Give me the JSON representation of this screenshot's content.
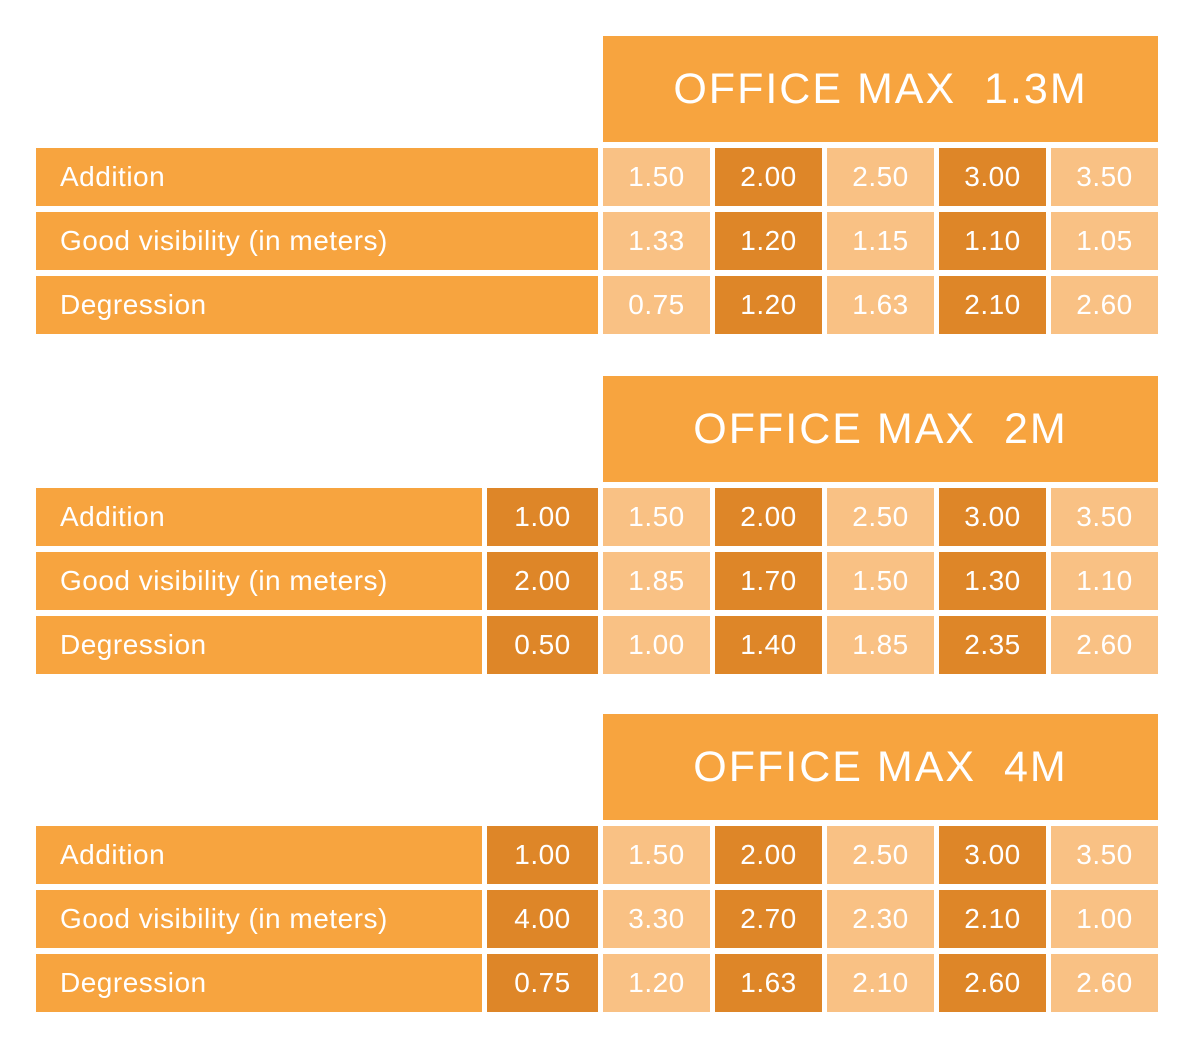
{
  "colors": {
    "header_and_label_orange": "#F7A43F",
    "light_cell_orange": "#F9C184",
    "dark_cell_orange": "#DE8628",
    "text": "#FFFFFF",
    "background": "#FFFFFF"
  },
  "tables": [
    {
      "title": "OFFICE MAX  1.3M",
      "rows": [
        {
          "label": "Addition",
          "values": [
            "1.50",
            "2.00",
            "2.50",
            "3.00",
            "3.50"
          ]
        },
        {
          "label": "Good visibility (in meters)",
          "values": [
            "1.33",
            "1.20",
            "1.15",
            "1.10",
            "1.05"
          ]
        },
        {
          "label": "Degression",
          "values": [
            "0.75",
            "1.20",
            "1.63",
            "2.10",
            "2.60"
          ]
        }
      ]
    },
    {
      "title": "OFFICE MAX  2M",
      "rows": [
        {
          "label": "Addition",
          "first": "1.00",
          "values": [
            "1.50",
            "2.00",
            "2.50",
            "3.00",
            "3.50"
          ]
        },
        {
          "label": "Good visibility (in meters)",
          "first": "2.00",
          "values": [
            "1.85",
            "1.70",
            "1.50",
            "1.30",
            "1.10"
          ]
        },
        {
          "label": "Degression",
          "first": "0.50",
          "values": [
            "1.00",
            "1.40",
            "1.85",
            "2.35",
            "2.60"
          ]
        }
      ]
    },
    {
      "title": "OFFICE MAX  4M",
      "rows": [
        {
          "label": "Addition",
          "first": "1.00",
          "values": [
            "1.50",
            "2.00",
            "2.50",
            "3.00",
            "3.50"
          ]
        },
        {
          "label": "Good visibility (in meters)",
          "first": "4.00",
          "values": [
            "3.30",
            "2.70",
            "2.30",
            "2.10",
            "1.00"
          ]
        },
        {
          "label": "Degression",
          "first": "0.75",
          "values": [
            "1.20",
            "1.63",
            "2.10",
            "2.60",
            "2.60"
          ]
        }
      ]
    }
  ],
  "chart_data": [
    {
      "type": "table",
      "title": "OFFICE MAX 1.3M",
      "row_headers": [
        "Addition",
        "Good visibility (in meters)",
        "Degression"
      ],
      "rows": [
        [
          1.5,
          2.0,
          2.5,
          3.0,
          3.5
        ],
        [
          1.33,
          1.2,
          1.15,
          1.1,
          1.05
        ],
        [
          0.75,
          1.2,
          1.63,
          2.1,
          2.6
        ]
      ]
    },
    {
      "type": "table",
      "title": "OFFICE MAX 2M",
      "row_headers": [
        "Addition",
        "Good visibility (in meters)",
        "Degression"
      ],
      "rows": [
        [
          1.0,
          1.5,
          2.0,
          2.5,
          3.0,
          3.5
        ],
        [
          2.0,
          1.85,
          1.7,
          1.5,
          1.3,
          1.1
        ],
        [
          0.5,
          1.0,
          1.4,
          1.85,
          2.35,
          2.6
        ]
      ]
    },
    {
      "type": "table",
      "title": "OFFICE MAX 4M",
      "row_headers": [
        "Addition",
        "Good visibility (in meters)",
        "Degression"
      ],
      "rows": [
        [
          1.0,
          1.5,
          2.0,
          2.5,
          3.0,
          3.5
        ],
        [
          4.0,
          3.3,
          2.7,
          2.3,
          2.1,
          1.0
        ],
        [
          0.75,
          1.2,
          1.63,
          2.1,
          2.6,
          2.6
        ]
      ]
    }
  ]
}
